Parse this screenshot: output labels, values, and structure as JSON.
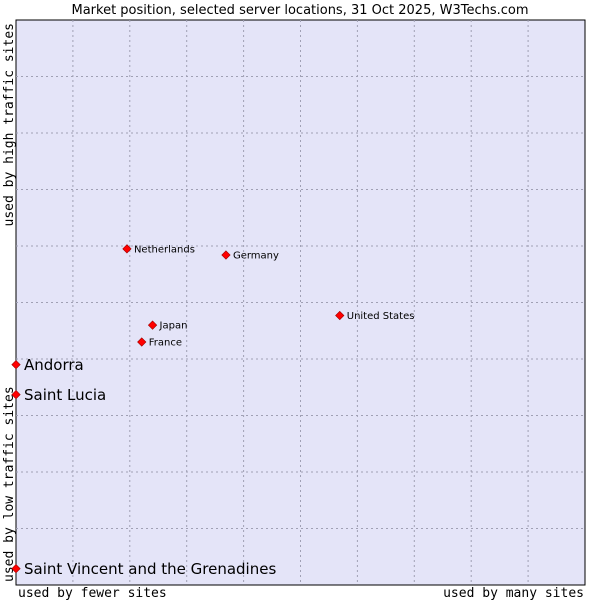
{
  "chart_data": {
    "type": "scatter",
    "title": "Market position, selected server locations, 31 Oct 2025, W3Techs.com",
    "xlabel_left": "used by fewer sites",
    "xlabel_right": "used by many sites",
    "ylabel_bottom": "used by low traffic sites",
    "ylabel_top": "used by high traffic sites",
    "xlim": [
      0,
      100
    ],
    "ylim": [
      0,
      100
    ],
    "grid": true,
    "point_color": "#ff0000",
    "plot_background": "#e4e4f8",
    "points": [
      {
        "label": "Netherlands",
        "x": 19.5,
        "y": 59.5,
        "emphasis": false
      },
      {
        "label": "Germany",
        "x": 36.9,
        "y": 58.4,
        "emphasis": false
      },
      {
        "label": "United States",
        "x": 56.9,
        "y": 47.7,
        "emphasis": false
      },
      {
        "label": "Japan",
        "x": 24.0,
        "y": 46.0,
        "emphasis": false
      },
      {
        "label": "France",
        "x": 22.1,
        "y": 43.0,
        "emphasis": false
      },
      {
        "label": "Andorra",
        "x": 0,
        "y": 39.0,
        "emphasis": true
      },
      {
        "label": "Saint Lucia",
        "x": 0,
        "y": 33.7,
        "emphasis": true
      },
      {
        "label": "Saint Vincent and the Grenadines",
        "x": 0,
        "y": 2.9,
        "emphasis": true
      }
    ]
  }
}
